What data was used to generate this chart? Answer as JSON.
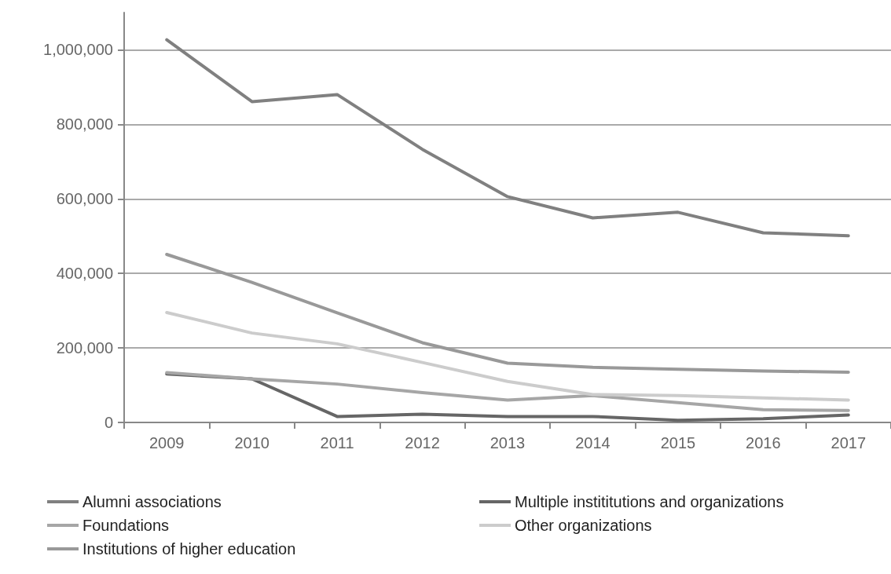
{
  "chart_data": {
    "type": "line",
    "categories": [
      "2009",
      "2010",
      "2011",
      "2012",
      "2013",
      "2014",
      "2015",
      "2016",
      "2017"
    ],
    "series": [
      {
        "name": "Alumni associations",
        "color": "#808080",
        "values": [
          1027000,
          861000,
          880000,
          733000,
          606000,
          549000,
          564000,
          509000,
          501000
        ]
      },
      {
        "name": "Multiple instititutions and organizations",
        "color": "#666666",
        "values": [
          130000,
          117000,
          16000,
          22000,
          16000,
          16000,
          6000,
          10000,
          20000
        ]
      },
      {
        "name": "Foundations",
        "color": "#a6a6a6",
        "values": [
          134000,
          117000,
          103000,
          80000,
          60000,
          72000,
          53000,
          34000,
          32000
        ]
      },
      {
        "name": "Other organizations",
        "color": "#cccccc",
        "values": [
          295000,
          240000,
          211000,
          161000,
          110000,
          75000,
          72000,
          66000,
          60000
        ]
      },
      {
        "name": "Institutions of higher education",
        "color": "#999999",
        "values": [
          451000,
          376000,
          294000,
          214000,
          159000,
          148000,
          143000,
          138000,
          135000
        ]
      }
    ],
    "ylim": [
      0,
      1100000
    ],
    "yticks": [
      0,
      {
        "value": 200000,
        "label": "200,000"
      },
      {
        "value": 400000,
        "label": "400,000"
      },
      {
        "value": 600000,
        "label": "600,000"
      },
      {
        "value": 800000,
        "label": "800,000"
      },
      {
        "value": 1000000,
        "label": "1,000,000"
      }
    ],
    "grid": "y",
    "legend": "bottom",
    "marker": "none",
    "line_style": "solid"
  }
}
